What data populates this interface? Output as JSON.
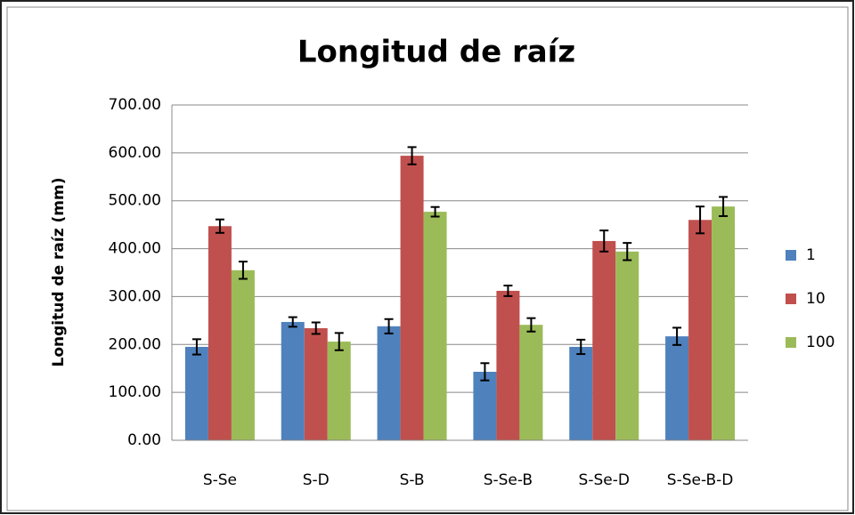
{
  "chart_data": {
    "type": "bar",
    "title": "Longitud de raíz",
    "y_label": "Longitud de raíz (mm)",
    "categories": [
      "S-Se",
      "S-D",
      "S-B",
      "S-Se-B",
      "S-Se-D",
      "S-Se-B-D"
    ],
    "series": [
      {
        "name": "1",
        "color": "#4f81bd",
        "values": [
          195,
          247,
          238,
          143,
          195,
          217
        ],
        "errors": [
          16,
          10,
          15,
          18,
          15,
          18
        ]
      },
      {
        "name": "10",
        "color": "#c0504d",
        "values": [
          447,
          234,
          594,
          312,
          416,
          460
        ],
        "errors": [
          14,
          12,
          18,
          11,
          22,
          28
        ]
      },
      {
        "name": "100",
        "color": "#9bbb59",
        "values": [
          355,
          206,
          477,
          241,
          394,
          488
        ],
        "errors": [
          18,
          18,
          10,
          14,
          18,
          20
        ]
      }
    ],
    "ylim": [
      0,
      700
    ],
    "yticks": [
      {
        "value": 0,
        "label": "0.00"
      },
      {
        "value": 100,
        "label": "100.00"
      },
      {
        "value": 200,
        "label": "200.00"
      },
      {
        "value": 300,
        "label": "300.00"
      },
      {
        "value": 400,
        "label": "400.00"
      },
      {
        "value": 500,
        "label": "500.00"
      },
      {
        "value": 600,
        "label": "600.00"
      },
      {
        "value": 700,
        "label": "700.00"
      }
    ],
    "grid": true,
    "legend": "right"
  }
}
